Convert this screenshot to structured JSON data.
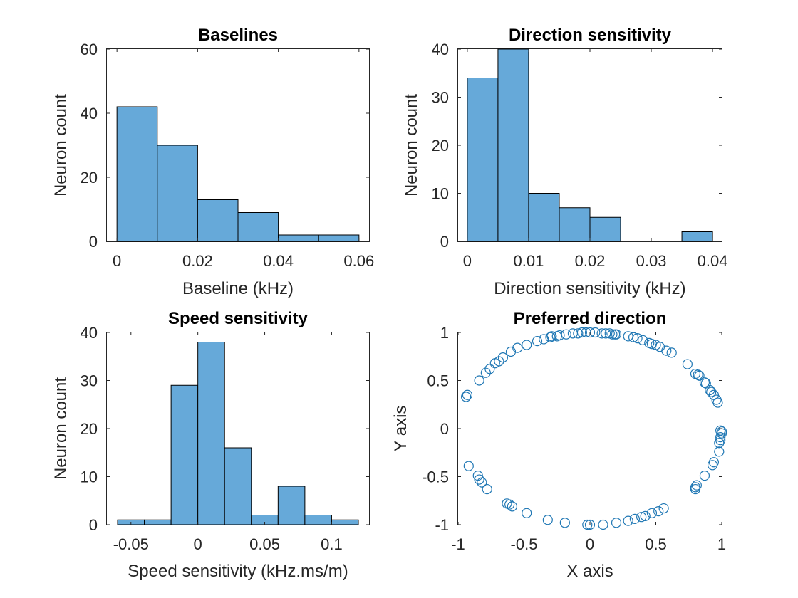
{
  "figure": {
    "background": "#ffffff"
  },
  "chart_data": [
    {
      "type": "bar",
      "subtype": "histogram",
      "title": "Baselines",
      "xlabel": "Baseline (kHz)",
      "ylabel": "Neuron count",
      "bin_edges": [
        0,
        0.01,
        0.02,
        0.03,
        0.04,
        0.05,
        0.06
      ],
      "values": [
        42,
        30,
        13,
        9,
        2,
        2
      ],
      "xlim": [
        -0.0025,
        0.0625
      ],
      "ylim": [
        0,
        60
      ],
      "xticks": [
        0,
        0.02,
        0.04,
        0.06
      ],
      "xtick_labels": [
        "0",
        "0.02",
        "0.04",
        "0.06"
      ],
      "yticks": [
        0,
        20,
        40,
        60
      ],
      "ytick_labels": [
        "0",
        "20",
        "40",
        "60"
      ],
      "color": "#66a9d9",
      "grid": false
    },
    {
      "type": "bar",
      "subtype": "histogram",
      "title": "Direction sensitivity",
      "xlabel": "Direction sensitivity (kHz)",
      "ylabel": "Neuron count",
      "bin_edges": [
        0,
        0.005,
        0.01,
        0.015,
        0.02,
        0.025,
        0.03,
        0.035,
        0.04
      ],
      "values": [
        34,
        40,
        10,
        7,
        5,
        0,
        0,
        2
      ],
      "xlim": [
        -0.0015,
        0.0415
      ],
      "ylim": [
        0,
        40
      ],
      "xticks": [
        0,
        0.01,
        0.02,
        0.03,
        0.04
      ],
      "xtick_labels": [
        "0",
        "0.01",
        "0.02",
        "0.03",
        "0.04"
      ],
      "yticks": [
        0,
        10,
        20,
        30,
        40
      ],
      "ytick_labels": [
        "0",
        "10",
        "20",
        "30",
        "40"
      ],
      "color": "#66a9d9",
      "grid": false
    },
    {
      "type": "bar",
      "subtype": "histogram",
      "title": "Speed sensitivity",
      "xlabel": "Speed sensitivity (kHz.ms/m)",
      "ylabel": "Neuron count",
      "bin_edges": [
        -0.06,
        -0.04,
        -0.02,
        0,
        0.02,
        0.04,
        0.06,
        0.08,
        0.1,
        0.12
      ],
      "values": [
        1,
        1,
        29,
        38,
        16,
        2,
        8,
        2,
        1
      ],
      "xlim": [
        -0.068,
        0.128
      ],
      "ylim": [
        0,
        40
      ],
      "xticks": [
        -0.05,
        0,
        0.05,
        0.1
      ],
      "xtick_labels": [
        "-0.05",
        "0",
        "0.05",
        "0.1"
      ],
      "yticks": [
        0,
        10,
        20,
        30,
        40
      ],
      "ytick_labels": [
        "0",
        "10",
        "20",
        "30",
        "40"
      ],
      "color": "#66a9d9",
      "grid": false
    },
    {
      "type": "scatter",
      "title": "Preferred direction",
      "xlabel": "X axis",
      "ylabel": "Y axis",
      "xlim": [
        -1,
        1
      ],
      "ylim": [
        -1,
        1
      ],
      "xticks": [
        -1,
        -0.5,
        0,
        0.5,
        1
      ],
      "xtick_labels": [
        "-1",
        "-0.5",
        "0",
        "0.5",
        "1"
      ],
      "yticks": [
        -1,
        -0.5,
        0,
        0.5,
        1
      ],
      "ytick_labels": [
        "-1",
        "-0.5",
        "0",
        "0.5",
        "1"
      ],
      "marker": "circle-open",
      "color": "#1f77b4",
      "grid": false,
      "points": [
        [
          -0.94,
          0.33
        ],
        [
          -0.93,
          0.35
        ],
        [
          -0.84,
          0.5
        ],
        [
          -0.79,
          0.58
        ],
        [
          -0.76,
          0.62
        ],
        [
          -0.72,
          0.68
        ],
        [
          -0.69,
          0.7
        ],
        [
          -0.66,
          0.74
        ],
        [
          -0.6,
          0.8
        ],
        [
          -0.55,
          0.84
        ],
        [
          -0.48,
          0.87
        ],
        [
          -0.4,
          0.91
        ],
        [
          -0.35,
          0.93
        ],
        [
          -0.3,
          0.95
        ],
        [
          -0.29,
          0.96
        ],
        [
          -0.25,
          0.96
        ],
        [
          -0.23,
          0.97
        ],
        [
          -0.18,
          0.98
        ],
        [
          -0.13,
          0.99
        ],
        [
          -0.09,
          0.99
        ],
        [
          -0.06,
          1.0
        ],
        [
          -0.03,
          1.0
        ],
        [
          0.0,
          1.0
        ],
        [
          0.04,
          1.0
        ],
        [
          0.09,
          0.99
        ],
        [
          0.12,
          0.99
        ],
        [
          0.15,
          0.99
        ],
        [
          0.17,
          0.98
        ],
        [
          0.19,
          0.98
        ],
        [
          0.2,
          0.98
        ],
        [
          0.29,
          0.96
        ],
        [
          0.33,
          0.95
        ],
        [
          0.36,
          0.94
        ],
        [
          0.4,
          0.92
        ],
        [
          0.45,
          0.89
        ],
        [
          0.47,
          0.88
        ],
        [
          0.5,
          0.87
        ],
        [
          0.53,
          0.85
        ],
        [
          0.58,
          0.81
        ],
        [
          0.62,
          0.79
        ],
        [
          0.74,
          0.67
        ],
        [
          0.8,
          0.57
        ],
        [
          0.82,
          0.56
        ],
        [
          0.83,
          0.55
        ],
        [
          0.87,
          0.48
        ],
        [
          0.88,
          0.47
        ],
        [
          0.91,
          0.4
        ],
        [
          0.92,
          0.38
        ],
        [
          0.94,
          0.35
        ],
        [
          0.96,
          0.3
        ],
        [
          0.97,
          0.27
        ],
        [
          0.99,
          -0.02
        ],
        [
          1.0,
          -0.03
        ],
        [
          1.0,
          -0.05
        ],
        [
          0.99,
          -0.09
        ],
        [
          0.99,
          -0.12
        ],
        [
          0.98,
          -0.15
        ],
        [
          0.98,
          -0.24
        ],
        [
          0.94,
          -0.35
        ],
        [
          0.93,
          -0.38
        ],
        [
          0.87,
          -0.49
        ],
        [
          0.81,
          -0.59
        ],
        [
          0.8,
          -0.61
        ],
        [
          0.8,
          -0.63
        ],
        [
          0.56,
          -0.83
        ],
        [
          0.52,
          -0.86
        ],
        [
          0.47,
          -0.88
        ],
        [
          0.42,
          -0.91
        ],
        [
          0.39,
          -0.92
        ],
        [
          0.34,
          -0.94
        ],
        [
          0.29,
          -0.96
        ],
        [
          0.2,
          -0.98
        ],
        [
          0.1,
          -1.0
        ],
        [
          0.0,
          -1.0
        ],
        [
          -0.02,
          -1.0
        ],
        [
          -0.19,
          -0.98
        ],
        [
          -0.32,
          -0.95
        ],
        [
          -0.48,
          -0.88
        ],
        [
          -0.59,
          -0.81
        ],
        [
          -0.61,
          -0.79
        ],
        [
          -0.63,
          -0.78
        ],
        [
          -0.78,
          -0.63
        ],
        [
          -0.82,
          -0.56
        ],
        [
          -0.84,
          -0.53
        ],
        [
          -0.85,
          -0.49
        ],
        [
          -0.92,
          -0.39
        ]
      ]
    }
  ]
}
